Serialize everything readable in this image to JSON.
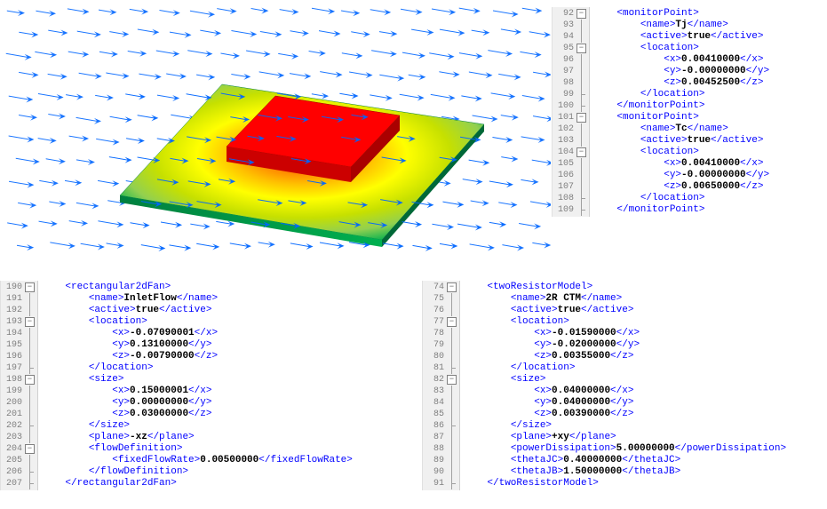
{
  "simulation": {
    "type": "3d-thermal-flow",
    "plate_color_gradient": [
      "#00b04f",
      "#92d050",
      "#c6e000",
      "#ffff00",
      "#ffc000",
      "#ff8000",
      "#ff4000"
    ],
    "chip_color": "#ff0000",
    "chip_side_color": "#cc0000",
    "arrow_color": "#0066ff",
    "bg": "#ffffff"
  },
  "panels": {
    "tr": {
      "start": 92,
      "lines": [
        {
          "i": "    ",
          "t": "<monitorPoint>",
          "f": "open"
        },
        {
          "i": "        ",
          "o": "<name>",
          "v": "Tj",
          "c": "</name>"
        },
        {
          "i": "        ",
          "o": "<active>",
          "v": "true",
          "c": "</active>"
        },
        {
          "i": "        ",
          "t": "<location>",
          "f": "open"
        },
        {
          "i": "            ",
          "o": "<x>",
          "v": "0.00410000",
          "c": "</x>"
        },
        {
          "i": "            ",
          "o": "<y>",
          "v": "-0.00000000",
          "c": "</y>"
        },
        {
          "i": "            ",
          "o": "<z>",
          "v": "0.00452500",
          "c": "</z>"
        },
        {
          "i": "        ",
          "t": "</location>",
          "f": "end"
        },
        {
          "i": "    ",
          "t": "</monitorPoint>",
          "f": "end"
        },
        {
          "i": "    ",
          "t": "<monitorPoint>",
          "f": "open"
        },
        {
          "i": "        ",
          "o": "<name>",
          "v": "Tc",
          "c": "</name>"
        },
        {
          "i": "        ",
          "o": "<active>",
          "v": "true",
          "c": "</active>"
        },
        {
          "i": "        ",
          "t": "<location>",
          "f": "open"
        },
        {
          "i": "            ",
          "o": "<x>",
          "v": "0.00410000",
          "c": "</x>"
        },
        {
          "i": "            ",
          "o": "<y>",
          "v": "-0.00000000",
          "c": "</y>"
        },
        {
          "i": "            ",
          "o": "<z>",
          "v": "0.00650000",
          "c": "</z>"
        },
        {
          "i": "        ",
          "t": "</location>",
          "f": "end"
        },
        {
          "i": "    ",
          "t": "</monitorPoint>",
          "f": "end"
        }
      ]
    },
    "bl": {
      "start": 190,
      "lines": [
        {
          "i": "    ",
          "t": "<rectangular2dFan>",
          "f": "open"
        },
        {
          "i": "        ",
          "o": "<name>",
          "v": "InletFlow",
          "c": "</name>"
        },
        {
          "i": "        ",
          "o": "<active>",
          "v": "true",
          "c": "</active>"
        },
        {
          "i": "        ",
          "t": "<location>",
          "f": "open"
        },
        {
          "i": "            ",
          "o": "<x>",
          "v": "-0.07090001",
          "c": "</x>"
        },
        {
          "i": "            ",
          "o": "<y>",
          "v": "0.13100000",
          "c": "</y>"
        },
        {
          "i": "            ",
          "o": "<z>",
          "v": "-0.00790000",
          "c": "</z>"
        },
        {
          "i": "        ",
          "t": "</location>",
          "f": "end"
        },
        {
          "i": "        ",
          "t": "<size>",
          "f": "open"
        },
        {
          "i": "            ",
          "o": "<x>",
          "v": "0.15000001",
          "c": "</x>"
        },
        {
          "i": "            ",
          "o": "<y>",
          "v": "0.00000000",
          "c": "</y>"
        },
        {
          "i": "            ",
          "o": "<z>",
          "v": "0.03000000",
          "c": "</z>"
        },
        {
          "i": "        ",
          "t": "</size>",
          "f": "end"
        },
        {
          "i": "        ",
          "o": "<plane>",
          "v": "-xz",
          "c": "</plane>"
        },
        {
          "i": "        ",
          "t": "<flowDefinition>",
          "f": "open"
        },
        {
          "i": "            ",
          "o": "<fixedFlowRate>",
          "v": "0.00500000",
          "c": "</fixedFlowRate>"
        },
        {
          "i": "        ",
          "t": "</flowDefinition>",
          "f": "end"
        },
        {
          "i": "    ",
          "t": "</rectangular2dFan>",
          "f": "end"
        }
      ]
    },
    "br": {
      "start": 74,
      "lines": [
        {
          "i": "    ",
          "t": "<twoResistorModel>",
          "f": "open"
        },
        {
          "i": "        ",
          "o": "<name>",
          "v": "2R CTM",
          "c": "</name>"
        },
        {
          "i": "        ",
          "o": "<active>",
          "v": "true",
          "c": "</active>"
        },
        {
          "i": "        ",
          "t": "<location>",
          "f": "open"
        },
        {
          "i": "            ",
          "o": "<x>",
          "v": "-0.01590000",
          "c": "</x>"
        },
        {
          "i": "            ",
          "o": "<y>",
          "v": "-0.02000000",
          "c": "</y>"
        },
        {
          "i": "            ",
          "o": "<z>",
          "v": "0.00355000",
          "c": "</z>"
        },
        {
          "i": "        ",
          "t": "</location>",
          "f": "end"
        },
        {
          "i": "        ",
          "t": "<size>",
          "f": "open"
        },
        {
          "i": "            ",
          "o": "<x>",
          "v": "0.04000000",
          "c": "</x>"
        },
        {
          "i": "            ",
          "o": "<y>",
          "v": "0.04000000",
          "c": "</y>"
        },
        {
          "i": "            ",
          "o": "<z>",
          "v": "0.00390000",
          "c": "</z>"
        },
        {
          "i": "        ",
          "t": "</size>",
          "f": "end"
        },
        {
          "i": "        ",
          "o": "<plane>",
          "v": "+xy",
          "c": "</plane>"
        },
        {
          "i": "        ",
          "o": "<powerDissipation>",
          "v": "5.00000000",
          "c": "</powerDissipation>"
        },
        {
          "i": "        ",
          "o": "<thetaJC>",
          "v": "0.40000000",
          "c": "</thetaJC>"
        },
        {
          "i": "        ",
          "o": "<thetaJB>",
          "v": "1.50000000",
          "c": "</thetaJB>"
        },
        {
          "i": "    ",
          "t": "</twoResistorModel>",
          "f": "end"
        }
      ]
    }
  }
}
